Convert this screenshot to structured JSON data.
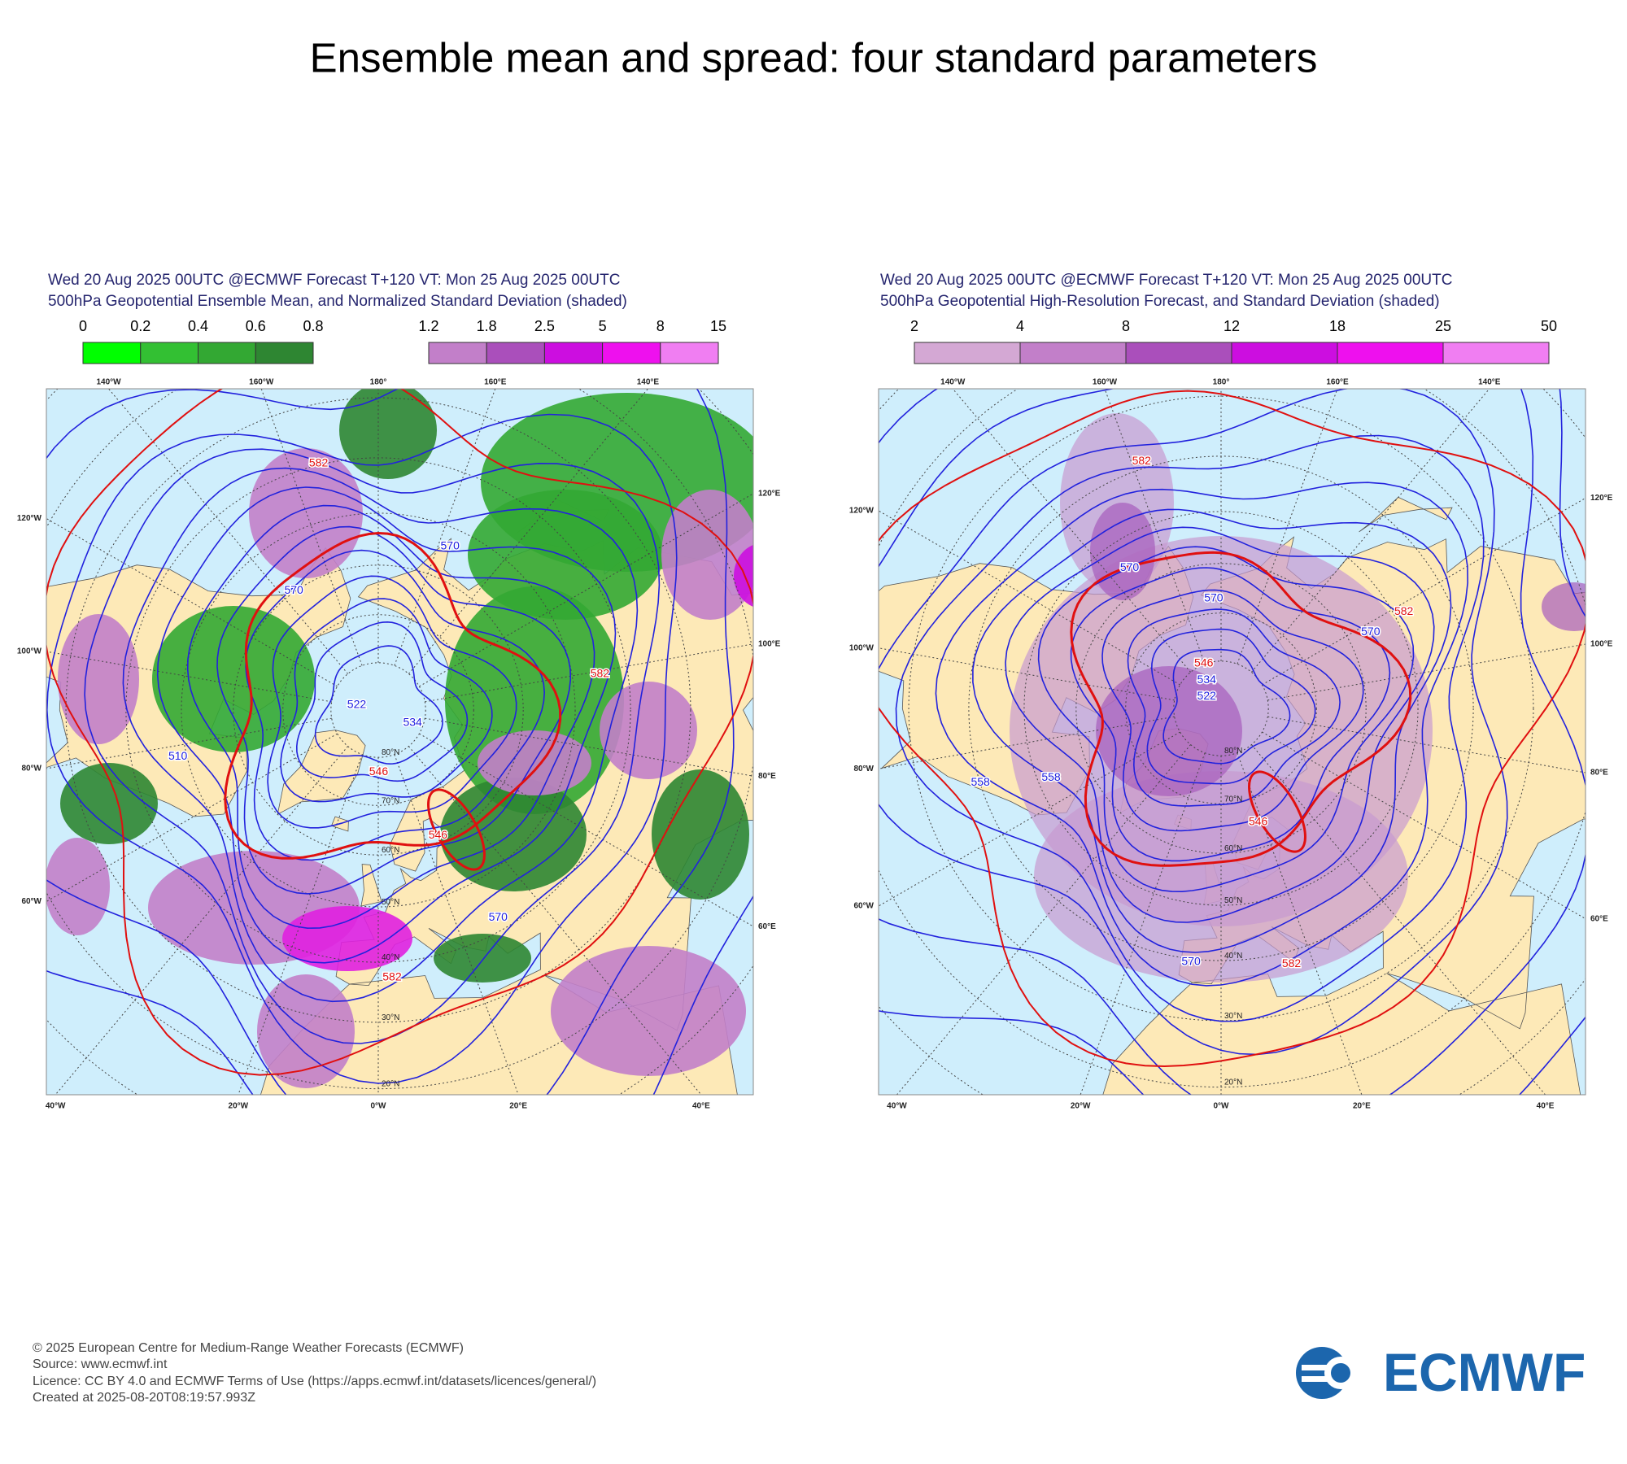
{
  "title": "Ensemble mean and spread: four standard parameters",
  "panels": [
    {
      "header": [
        "Wed 20 Aug 2025 00UTC @ECMWF Forecast T+120 VT: Mon 25 Aug 2025 00UTC",
        "500hPa Geopotential Ensemble Mean, and Normalized Standard Deviation (shaded)"
      ],
      "colorbars": [
        {
          "ticks": [
            0,
            0.2,
            0.4,
            0.6,
            0.8
          ],
          "colors": [
            "#00ff00",
            "#33c033",
            "#33a833",
            "#2e8632"
          ]
        },
        {
          "ticks": [
            1.2,
            1.8,
            2.5,
            5,
            8,
            15
          ],
          "colors": [
            "#c27fc9",
            "#aa4fbb",
            "#cc0ee0",
            "#ee10ee",
            "#f07ef2"
          ]
        }
      ],
      "graticule": {
        "top": [
          "140°W",
          "160°W",
          "180°",
          "160°E",
          "140°E"
        ],
        "left": [
          "120°W",
          "100°W",
          "80°W",
          "60°W"
        ],
        "right": [
          "120°E",
          "100°E",
          "80°E",
          "60°E"
        ],
        "bottom": [
          "40°W",
          "20°W",
          "0°W",
          "20°E",
          "40°E"
        ],
        "latitudes": [
          "80°N",
          "70°N",
          "60°N",
          "50°N",
          "40°N",
          "30°N",
          "20°N"
        ]
      },
      "contour_labels": [
        {
          "text": "582",
          "color": "#e01010"
        },
        {
          "text": "570",
          "color": "#2020e0"
        },
        {
          "text": "570",
          "color": "#2020e0"
        },
        {
          "text": "582",
          "color": "#e01010"
        },
        {
          "text": "534",
          "color": "#2020e0"
        },
        {
          "text": "522",
          "color": "#2020e0"
        },
        {
          "text": "510",
          "color": "#2020e0"
        },
        {
          "text": "546",
          "color": "#e01010"
        },
        {
          "text": "546",
          "color": "#e01010"
        },
        {
          "text": "570",
          "color": "#2020e0"
        },
        {
          "text": "582",
          "color": "#e01010"
        }
      ]
    },
    {
      "header": [
        "Wed 20 Aug 2025 00UTC @ECMWF Forecast T+120 VT: Mon 25 Aug 2025 00UTC",
        "500hPa Geopotential High-Resolution Forecast, and Standard Deviation (shaded)"
      ],
      "colorbars": [
        {
          "ticks": [
            2,
            4,
            8,
            12,
            18,
            25,
            50
          ],
          "colors": [
            "#d4a8d4",
            "#c27fc9",
            "#aa4fbb",
            "#cc0ee0",
            "#ee10ee",
            "#f07ef2"
          ]
        }
      ],
      "graticule": {
        "top": [
          "140°W",
          "160°W",
          "180°",
          "160°E",
          "140°E"
        ],
        "left": [
          "120°W",
          "100°W",
          "80°W",
          "60°W"
        ],
        "right": [
          "120°E",
          "100°E",
          "80°E",
          "60°E"
        ],
        "bottom": [
          "40°W",
          "20°W",
          "0°W",
          "20°E",
          "40°E"
        ],
        "latitudes": [
          "80°N",
          "70°N",
          "60°N",
          "50°N",
          "40°N",
          "30°N",
          "20°N"
        ]
      },
      "contour_labels": [
        {
          "text": "582",
          "color": "#e01010"
        },
        {
          "text": "570",
          "color": "#2020e0"
        },
        {
          "text": "570",
          "color": "#2020e0"
        },
        {
          "text": "582",
          "color": "#e01010"
        },
        {
          "text": "570",
          "color": "#2020e0"
        },
        {
          "text": "546",
          "color": "#e01010"
        },
        {
          "text": "534",
          "color": "#2020e0"
        },
        {
          "text": "522",
          "color": "#2020e0"
        },
        {
          "text": "558",
          "color": "#2020e0"
        },
        {
          "text": "558",
          "color": "#2020e0"
        },
        {
          "text": "546",
          "color": "#e01010"
        },
        {
          "text": "570",
          "color": "#2020e0"
        },
        {
          "text": "582",
          "color": "#e01010"
        }
      ]
    }
  ],
  "footer": [
    "© 2025 European Centre for Medium-Range Weather Forecasts (ECMWF)",
    "Source: www.ecmwf.int",
    "Licence: CC BY 4.0 and ECMWF Terms of Use (https://apps.ecmwf.int/datasets/licences/general/)",
    "Created at 2025-08-20T08:19:57.993Z"
  ],
  "logo": "ECMWF"
}
